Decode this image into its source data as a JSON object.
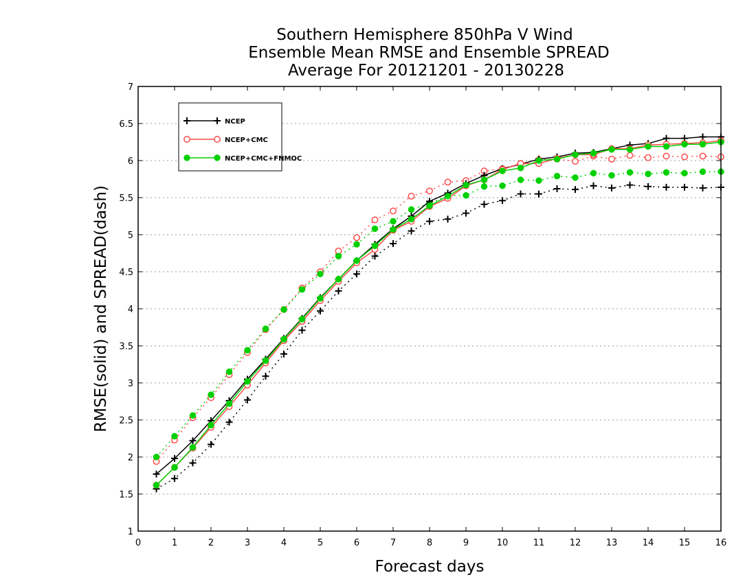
{
  "chart_data": {
    "type": "line",
    "title": [
      "Southern Hemisphere 850hPa V Wind",
      "Ensemble Mean RMSE and Ensemble SPREAD",
      "Average For 20121201 - 20130228"
    ],
    "xlabel": "Forecast days",
    "ylabel": "RMSE(solid) and SPREAD(dash)",
    "xlim": [
      0,
      16
    ],
    "ylim": [
      1,
      7
    ],
    "xticks": [
      0,
      1,
      2,
      3,
      4,
      5,
      6,
      7,
      8,
      9,
      10,
      11,
      12,
      13,
      14,
      15,
      16
    ],
    "yticks": [
      1,
      1.5,
      2,
      2.5,
      3,
      3.5,
      4,
      4.5,
      5,
      5.5,
      6,
      6.5,
      7
    ],
    "grid": true,
    "legend_position": "top-left",
    "x": [
      0.5,
      1,
      1.5,
      2,
      2.5,
      3,
      3.5,
      4,
      4.5,
      5,
      5.5,
      6,
      6.5,
      7,
      7.5,
      8,
      8.5,
      9,
      9.5,
      10,
      10.5,
      11,
      11.5,
      12,
      12.5,
      13,
      13.5,
      14,
      14.5,
      15,
      15.5,
      16
    ],
    "series": [
      {
        "name": "NCEP",
        "kind": "rmse",
        "color": "#000000",
        "marker": "plus",
        "values": [
          1.77,
          1.98,
          2.22,
          2.49,
          2.76,
          3.05,
          3.32,
          3.6,
          3.87,
          4.15,
          4.4,
          4.65,
          4.87,
          5.08,
          5.25,
          5.45,
          5.56,
          5.69,
          5.8,
          5.89,
          5.95,
          6.02,
          6.05,
          6.1,
          6.11,
          6.16,
          6.21,
          6.23,
          6.3,
          6.3,
          6.32,
          6.32
        ]
      },
      {
        "name": "NCEP+CMC",
        "kind": "rmse",
        "color": "#ff4a4a",
        "marker": "open-circle",
        "values": [
          1.62,
          1.86,
          2.12,
          2.4,
          2.68,
          2.97,
          3.27,
          3.57,
          3.83,
          4.11,
          4.37,
          4.62,
          4.8,
          5.06,
          5.18,
          5.38,
          5.49,
          5.66,
          5.74,
          5.88,
          5.96,
          5.96,
          6.03,
          6.08,
          6.08,
          6.16,
          6.16,
          6.21,
          6.22,
          6.23,
          6.24,
          6.27
        ]
      },
      {
        "name": "NCEP+CMC+FNMOC",
        "kind": "rmse",
        "color": "#00d000",
        "marker": "filled-circle",
        "values": [
          1.62,
          1.86,
          2.13,
          2.43,
          2.72,
          3.02,
          3.3,
          3.59,
          3.86,
          4.14,
          4.4,
          4.65,
          4.85,
          5.07,
          5.21,
          5.39,
          5.52,
          5.67,
          5.74,
          5.86,
          5.9,
          6.0,
          6.02,
          6.08,
          6.1,
          6.15,
          6.15,
          6.19,
          6.19,
          6.22,
          6.22,
          6.25
        ]
      },
      {
        "name": "NCEP",
        "kind": "spread",
        "color": "#000000",
        "marker": "plus",
        "values": [
          1.57,
          1.71,
          1.92,
          2.17,
          2.47,
          2.77,
          3.09,
          3.39,
          3.71,
          3.97,
          4.24,
          4.47,
          4.71,
          4.88,
          5.05,
          5.18,
          5.21,
          5.29,
          5.41,
          5.46,
          5.55,
          5.55,
          5.62,
          5.61,
          5.66,
          5.63,
          5.67,
          5.65,
          5.64,
          5.64,
          5.63,
          5.64
        ]
      },
      {
        "name": "NCEP+CMC",
        "kind": "spread",
        "color": "#ff4a4a",
        "marker": "open-circle",
        "values": [
          1.94,
          2.23,
          2.53,
          2.8,
          3.11,
          3.41,
          3.72,
          3.99,
          4.28,
          4.5,
          4.78,
          4.96,
          5.2,
          5.32,
          5.52,
          5.59,
          5.71,
          5.73,
          5.86,
          5.89,
          5.96,
          6.01,
          6.02,
          5.99,
          6.06,
          6.02,
          6.07,
          6.04,
          6.06,
          6.05,
          6.06,
          6.05
        ]
      },
      {
        "name": "NCEP+CMC+FNMOC",
        "kind": "spread",
        "color": "#00d000",
        "marker": "filled-circle",
        "values": [
          2.0,
          2.28,
          2.56,
          2.84,
          3.15,
          3.44,
          3.73,
          3.99,
          4.26,
          4.47,
          4.71,
          4.87,
          5.08,
          5.18,
          5.34,
          5.42,
          5.53,
          5.53,
          5.65,
          5.66,
          5.74,
          5.73,
          5.79,
          5.77,
          5.83,
          5.8,
          5.84,
          5.82,
          5.84,
          5.83,
          5.85,
          5.85
        ]
      }
    ],
    "legend": [
      {
        "label": "NCEP",
        "color": "#000000",
        "marker": "plus"
      },
      {
        "label": "NCEP+CMC",
        "color": "#ff4a4a",
        "marker": "open-circle"
      },
      {
        "label": "NCEP+CMC+FNMOC",
        "color": "#00d000",
        "marker": "filled-circle"
      }
    ]
  }
}
